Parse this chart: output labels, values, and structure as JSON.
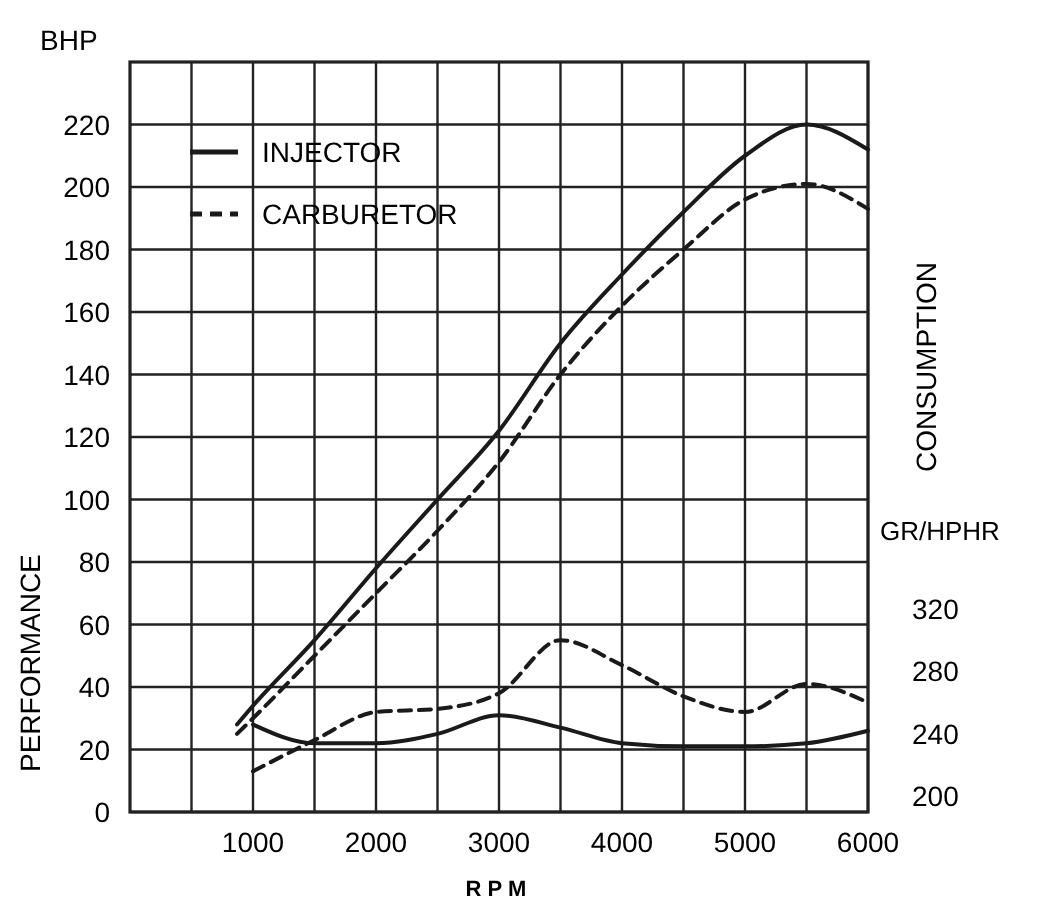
{
  "chart_data": {
    "type": "line",
    "xlabel": "RPM",
    "ylabel": "PERFORMANCE",
    "y2label": "CONSUMPTION",
    "annotations": [
      "BHP",
      "GR/HPHR"
    ],
    "xlim": [
      0,
      6000
    ],
    "ylim": [
      0,
      240
    ],
    "y2lim": [
      200,
      680
    ],
    "xticks": [
      {
        "value": 500,
        "label": null
      },
      1000,
      {
        "value": 1500,
        "label": null
      },
      2000,
      {
        "value": 2500,
        "label": null
      },
      3000,
      {
        "value": 3500,
        "label": null
      },
      4000,
      {
        "value": 4500,
        "label": null
      },
      5000,
      {
        "value": 5500,
        "label": null
      },
      6000
    ],
    "yticks": [
      0,
      20,
      40,
      60,
      80,
      100,
      120,
      140,
      160,
      180,
      200,
      220
    ],
    "y2ticks": [
      200,
      240,
      280,
      320
    ],
    "grid": true,
    "legend": "top left",
    "marker": "none",
    "series": [
      {
        "name": "INJECTOR",
        "color": "#1a1a1a",
        "line_style": "solid",
        "x": [
          870,
          1000,
          1500,
          2000,
          2500,
          3000,
          3500,
          4000,
          4500,
          5000,
          5500,
          6000
        ],
        "values": [
          28,
          34,
          55,
          78,
          100,
          122,
          150,
          172,
          192,
          210,
          220,
          212
        ]
      },
      {
        "name": "CARBURETOR",
        "color": "#1a1a1a",
        "line_style": "dashed",
        "x": [
          870,
          1000,
          1500,
          2000,
          2500,
          3000,
          3500,
          4000,
          4500,
          5000,
          5500,
          6000
        ],
        "values": [
          25,
          30,
          50,
          70,
          90,
          112,
          140,
          162,
          180,
          196,
          201,
          193
        ]
      },
      {
        "color": "#1a1a1a",
        "line_style": "solid",
        "axis": "y2",
        "x": [
          1000,
          1500,
          2000,
          2500,
          3000,
          3500,
          4000,
          4500,
          5000,
          5500,
          6000
        ],
        "values": [
          256,
          244,
          244,
          250,
          262,
          254,
          244,
          242,
          242,
          244,
          252
        ]
      },
      {
        "color": "#1a1a1a",
        "line_style": "dashed",
        "axis": "y2",
        "x": [
          1000,
          1500,
          2000,
          2500,
          3000,
          3500,
          4000,
          4500,
          5000,
          5500,
          6000
        ],
        "values": [
          226,
          246,
          264,
          266,
          276,
          310,
          294,
          274,
          264,
          282,
          270
        ]
      }
    ]
  }
}
